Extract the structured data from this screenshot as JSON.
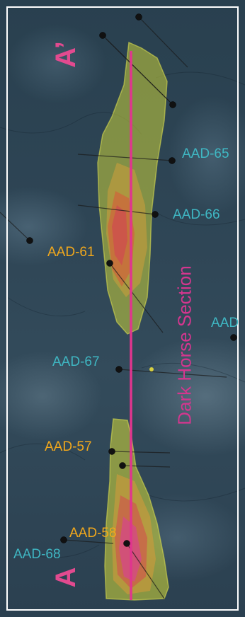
{
  "section_label": "Dark Horse Section",
  "section_ends": {
    "south": "A",
    "north": "A’"
  },
  "drillholes": [
    {
      "id": "AAD-65",
      "color": "teal"
    },
    {
      "id": "AAD-66",
      "color": "teal"
    },
    {
      "id": "AAD-61",
      "color": "amber"
    },
    {
      "id": "AAD-67",
      "color": "teal"
    },
    {
      "id": "AAD-57",
      "color": "amber"
    },
    {
      "id": "AAD-58",
      "color": "amber"
    },
    {
      "id": "AAD-68",
      "color": "teal"
    },
    {
      "id": "AAD",
      "color": "teal"
    }
  ],
  "colors": {
    "section_line": "#e0358e",
    "teal_label": "#3fb7c3",
    "amber_label": "#f2a81c",
    "frame": "#ffffff"
  }
}
